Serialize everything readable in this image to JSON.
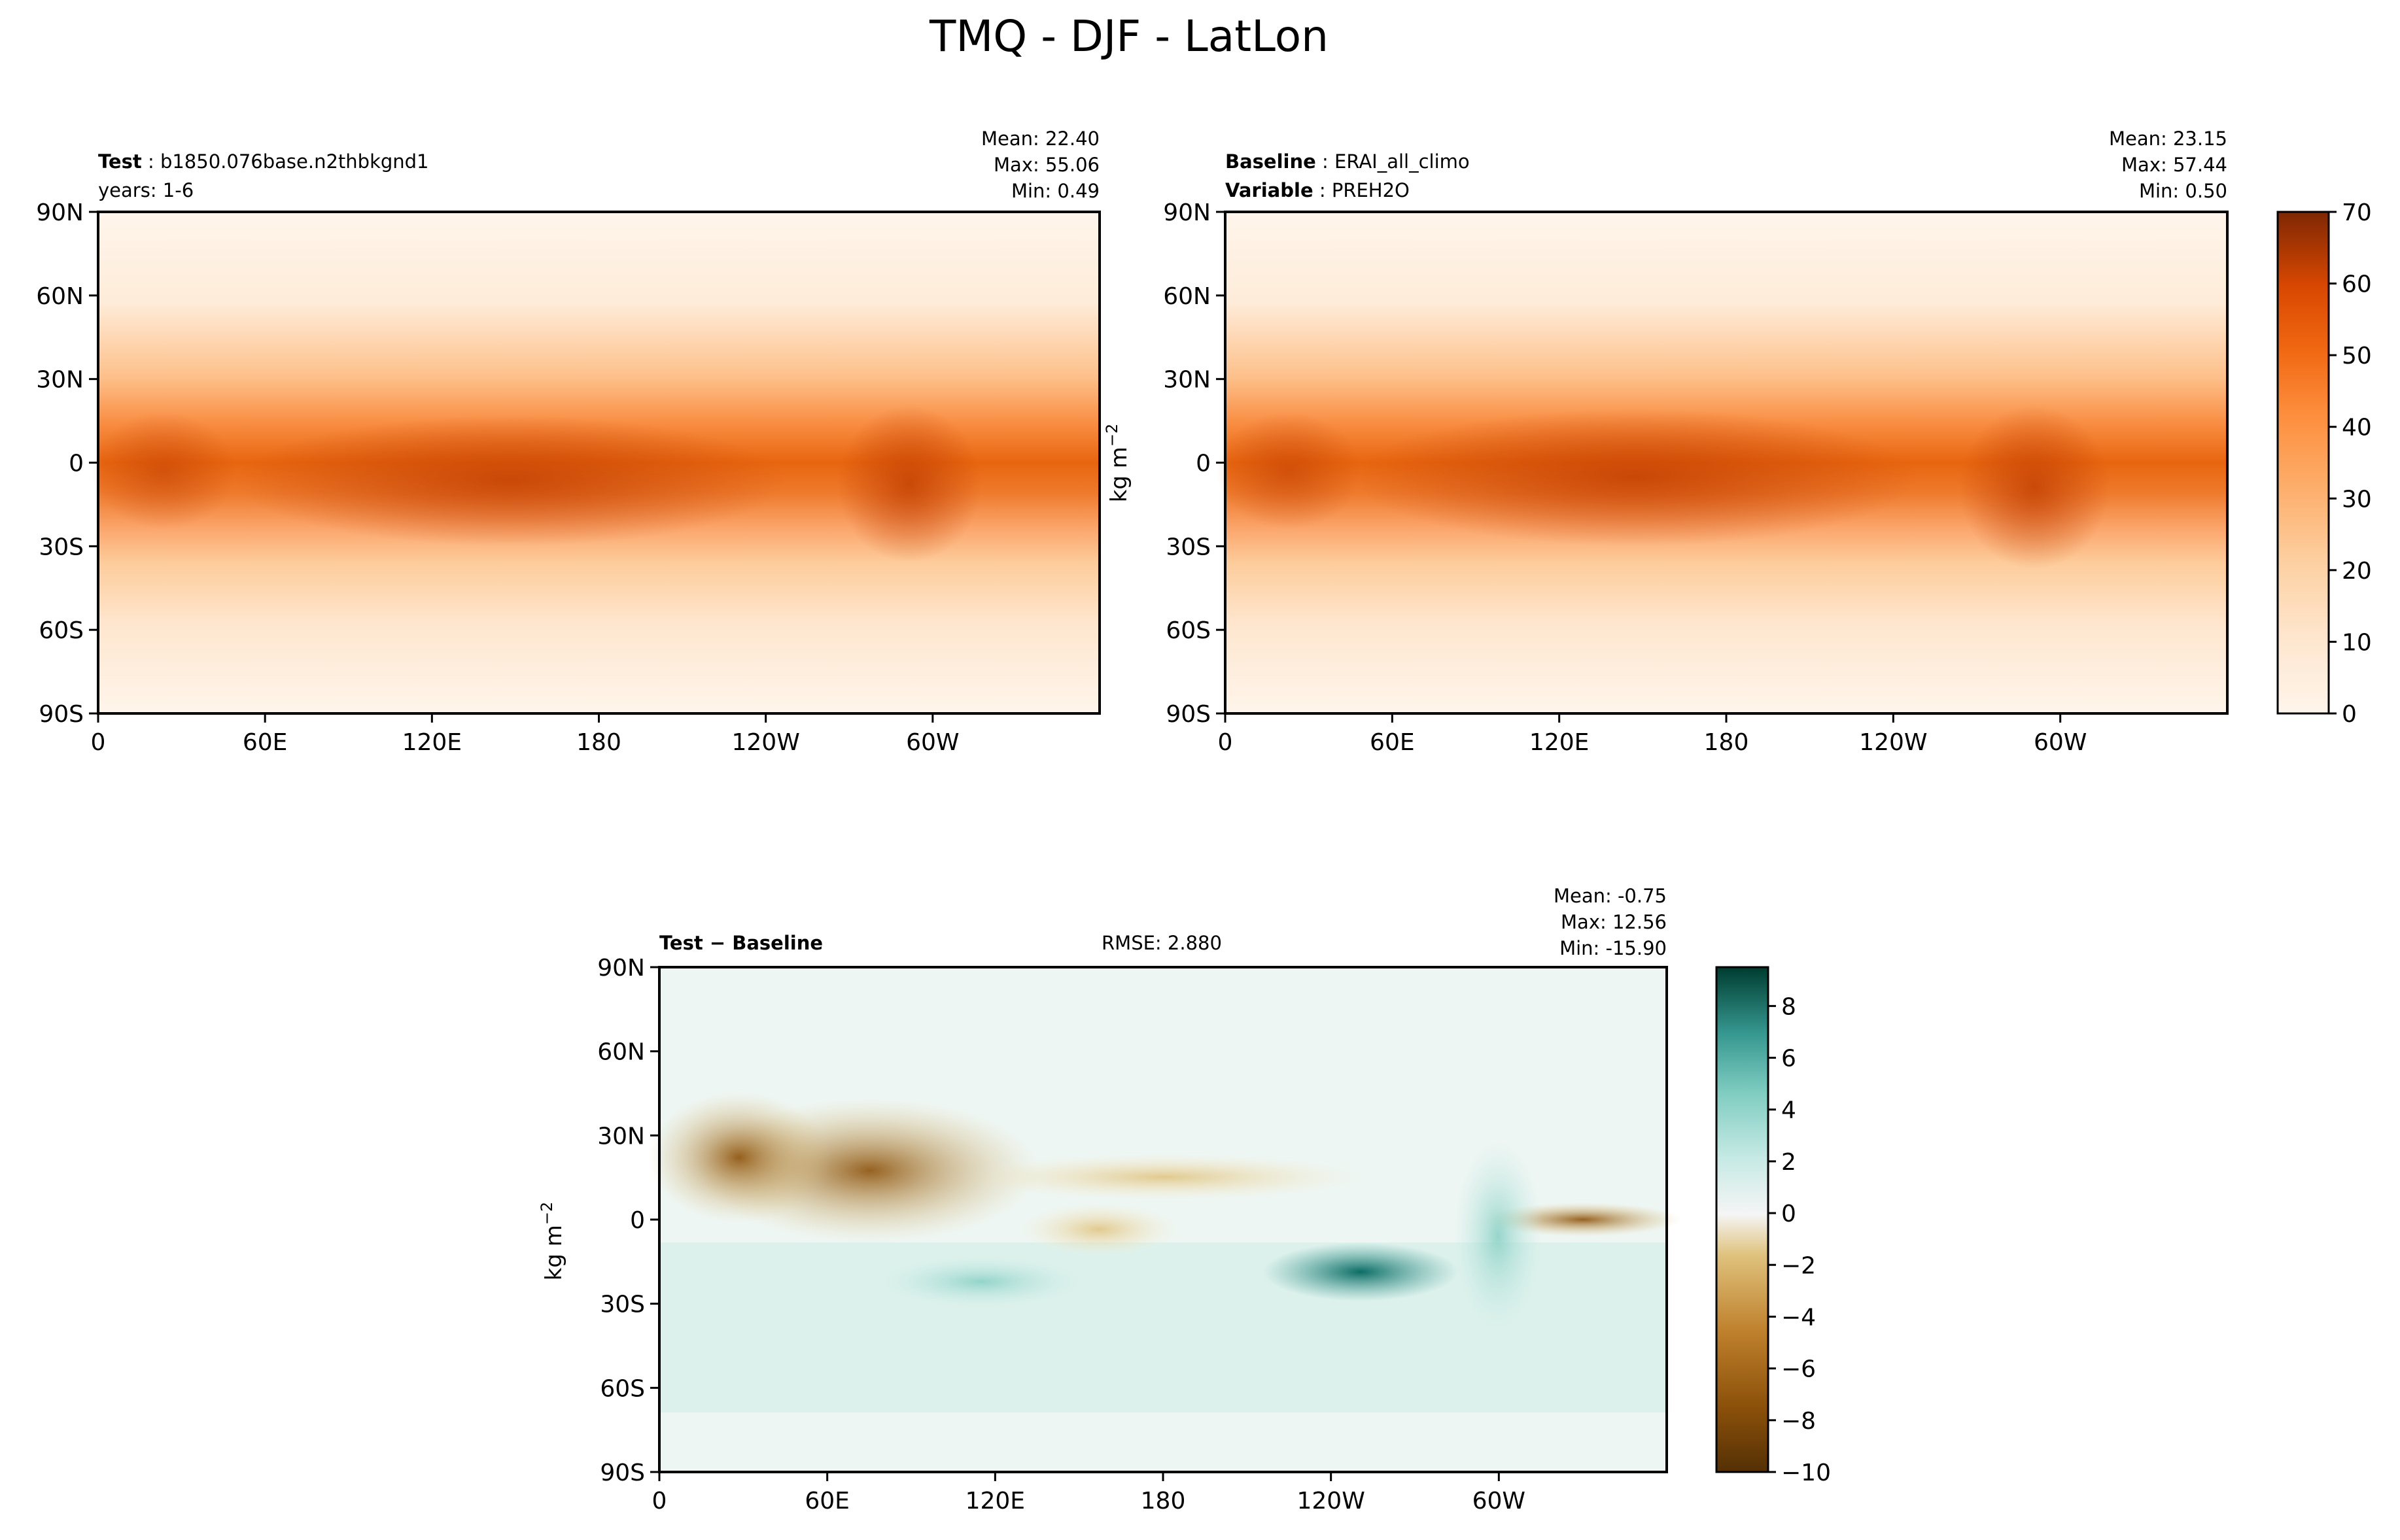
{
  "suptitle": "TMQ - DJF - LatLon",
  "units_label": "kg m",
  "units_exp": "−2",
  "lat_ticks": [
    "90N",
    "60N",
    "30N",
    "0",
    "30S",
    "60S",
    "90S"
  ],
  "lon_ticks": [
    "0",
    "60E",
    "120E",
    "180",
    "120W",
    "60W"
  ],
  "panels": {
    "test": {
      "name_bold": "Test",
      "name_value": "b1850.076base.n2thbkgnd1",
      "years": "years: 1-6",
      "mean": "Mean: 22.40",
      "max": "Max: 55.06",
      "min": "Min:  0.49"
    },
    "baseline": {
      "name_bold": "Baseline",
      "name_value": "ERAI_all_climo",
      "var_bold": "Variable",
      "var_value": "PREH2O",
      "mean": "Mean: 23.15",
      "max": "Max: 57.44",
      "min": "Min:  0.50"
    },
    "diff": {
      "title_bold": "Test − Baseline",
      "rmse": "RMSE: 2.880",
      "mean": "Mean: -0.75",
      "max": "Max: 12.56",
      "min": "Min: -15.90"
    }
  },
  "chart_data": [
    {
      "type": "heatmap",
      "name": "test",
      "xlabel": "",
      "ylabel": "",
      "x_range": [
        0,
        360
      ],
      "y_range": [
        -90,
        90
      ],
      "stats": {
        "mean": 22.4,
        "max": 55.06,
        "min": 0.49
      },
      "zonal_profile": {
        "lat": [
          90,
          60,
          30,
          15,
          0,
          -10,
          -20,
          -30,
          -60,
          -90
        ],
        "value": [
          3,
          7,
          22,
          35,
          45,
          42,
          30,
          20,
          8,
          2
        ]
      },
      "colorbar_ref": 0
    },
    {
      "type": "heatmap",
      "name": "baseline",
      "xlabel": "",
      "ylabel": "kg m−2",
      "x_range": [
        0,
        360
      ],
      "y_range": [
        -90,
        90
      ],
      "stats": {
        "mean": 23.15,
        "max": 57.44,
        "min": 0.5
      },
      "zonal_profile": {
        "lat": [
          90,
          60,
          30,
          15,
          0,
          -10,
          -20,
          -30,
          -60,
          -90
        ],
        "value": [
          3,
          7,
          23,
          36,
          46,
          44,
          31,
          20,
          8,
          2
        ]
      },
      "colorbar_ref": 0
    },
    {
      "type": "heatmap",
      "name": "difference",
      "xlabel": "",
      "ylabel": "kg m−2",
      "x_range": [
        0,
        360
      ],
      "y_range": [
        -90,
        90
      ],
      "stats": {
        "mean": -0.75,
        "max": 12.56,
        "min": -15.9,
        "rmse": 2.88
      },
      "colorbar_ref": 1
    }
  ],
  "colorbars": [
    {
      "name": "TMQ",
      "range": [
        0,
        70
      ],
      "tick_labels": [
        "0",
        "10",
        "20",
        "30",
        "40",
        "50",
        "60",
        "70"
      ],
      "cmap": "Oranges"
    },
    {
      "name": "diff",
      "range": [
        -10,
        9.5
      ],
      "tick_labels": [
        "8",
        "6",
        "4",
        "2",
        "0",
        "−2",
        "−4",
        "−6",
        "−8",
        "−10"
      ],
      "tick_values": [
        8,
        6,
        4,
        2,
        0,
        -2,
        -4,
        -6,
        -8,
        -10
      ],
      "cmap": "BrBG"
    }
  ],
  "colors": {
    "orange_low": "#fff5eb",
    "orange_mid": "#fd8d3c",
    "orange_high": "#7f2704",
    "brbg_low": "#543005",
    "brbg_mid": "#f5f5f5",
    "brbg_high": "#003c30"
  }
}
